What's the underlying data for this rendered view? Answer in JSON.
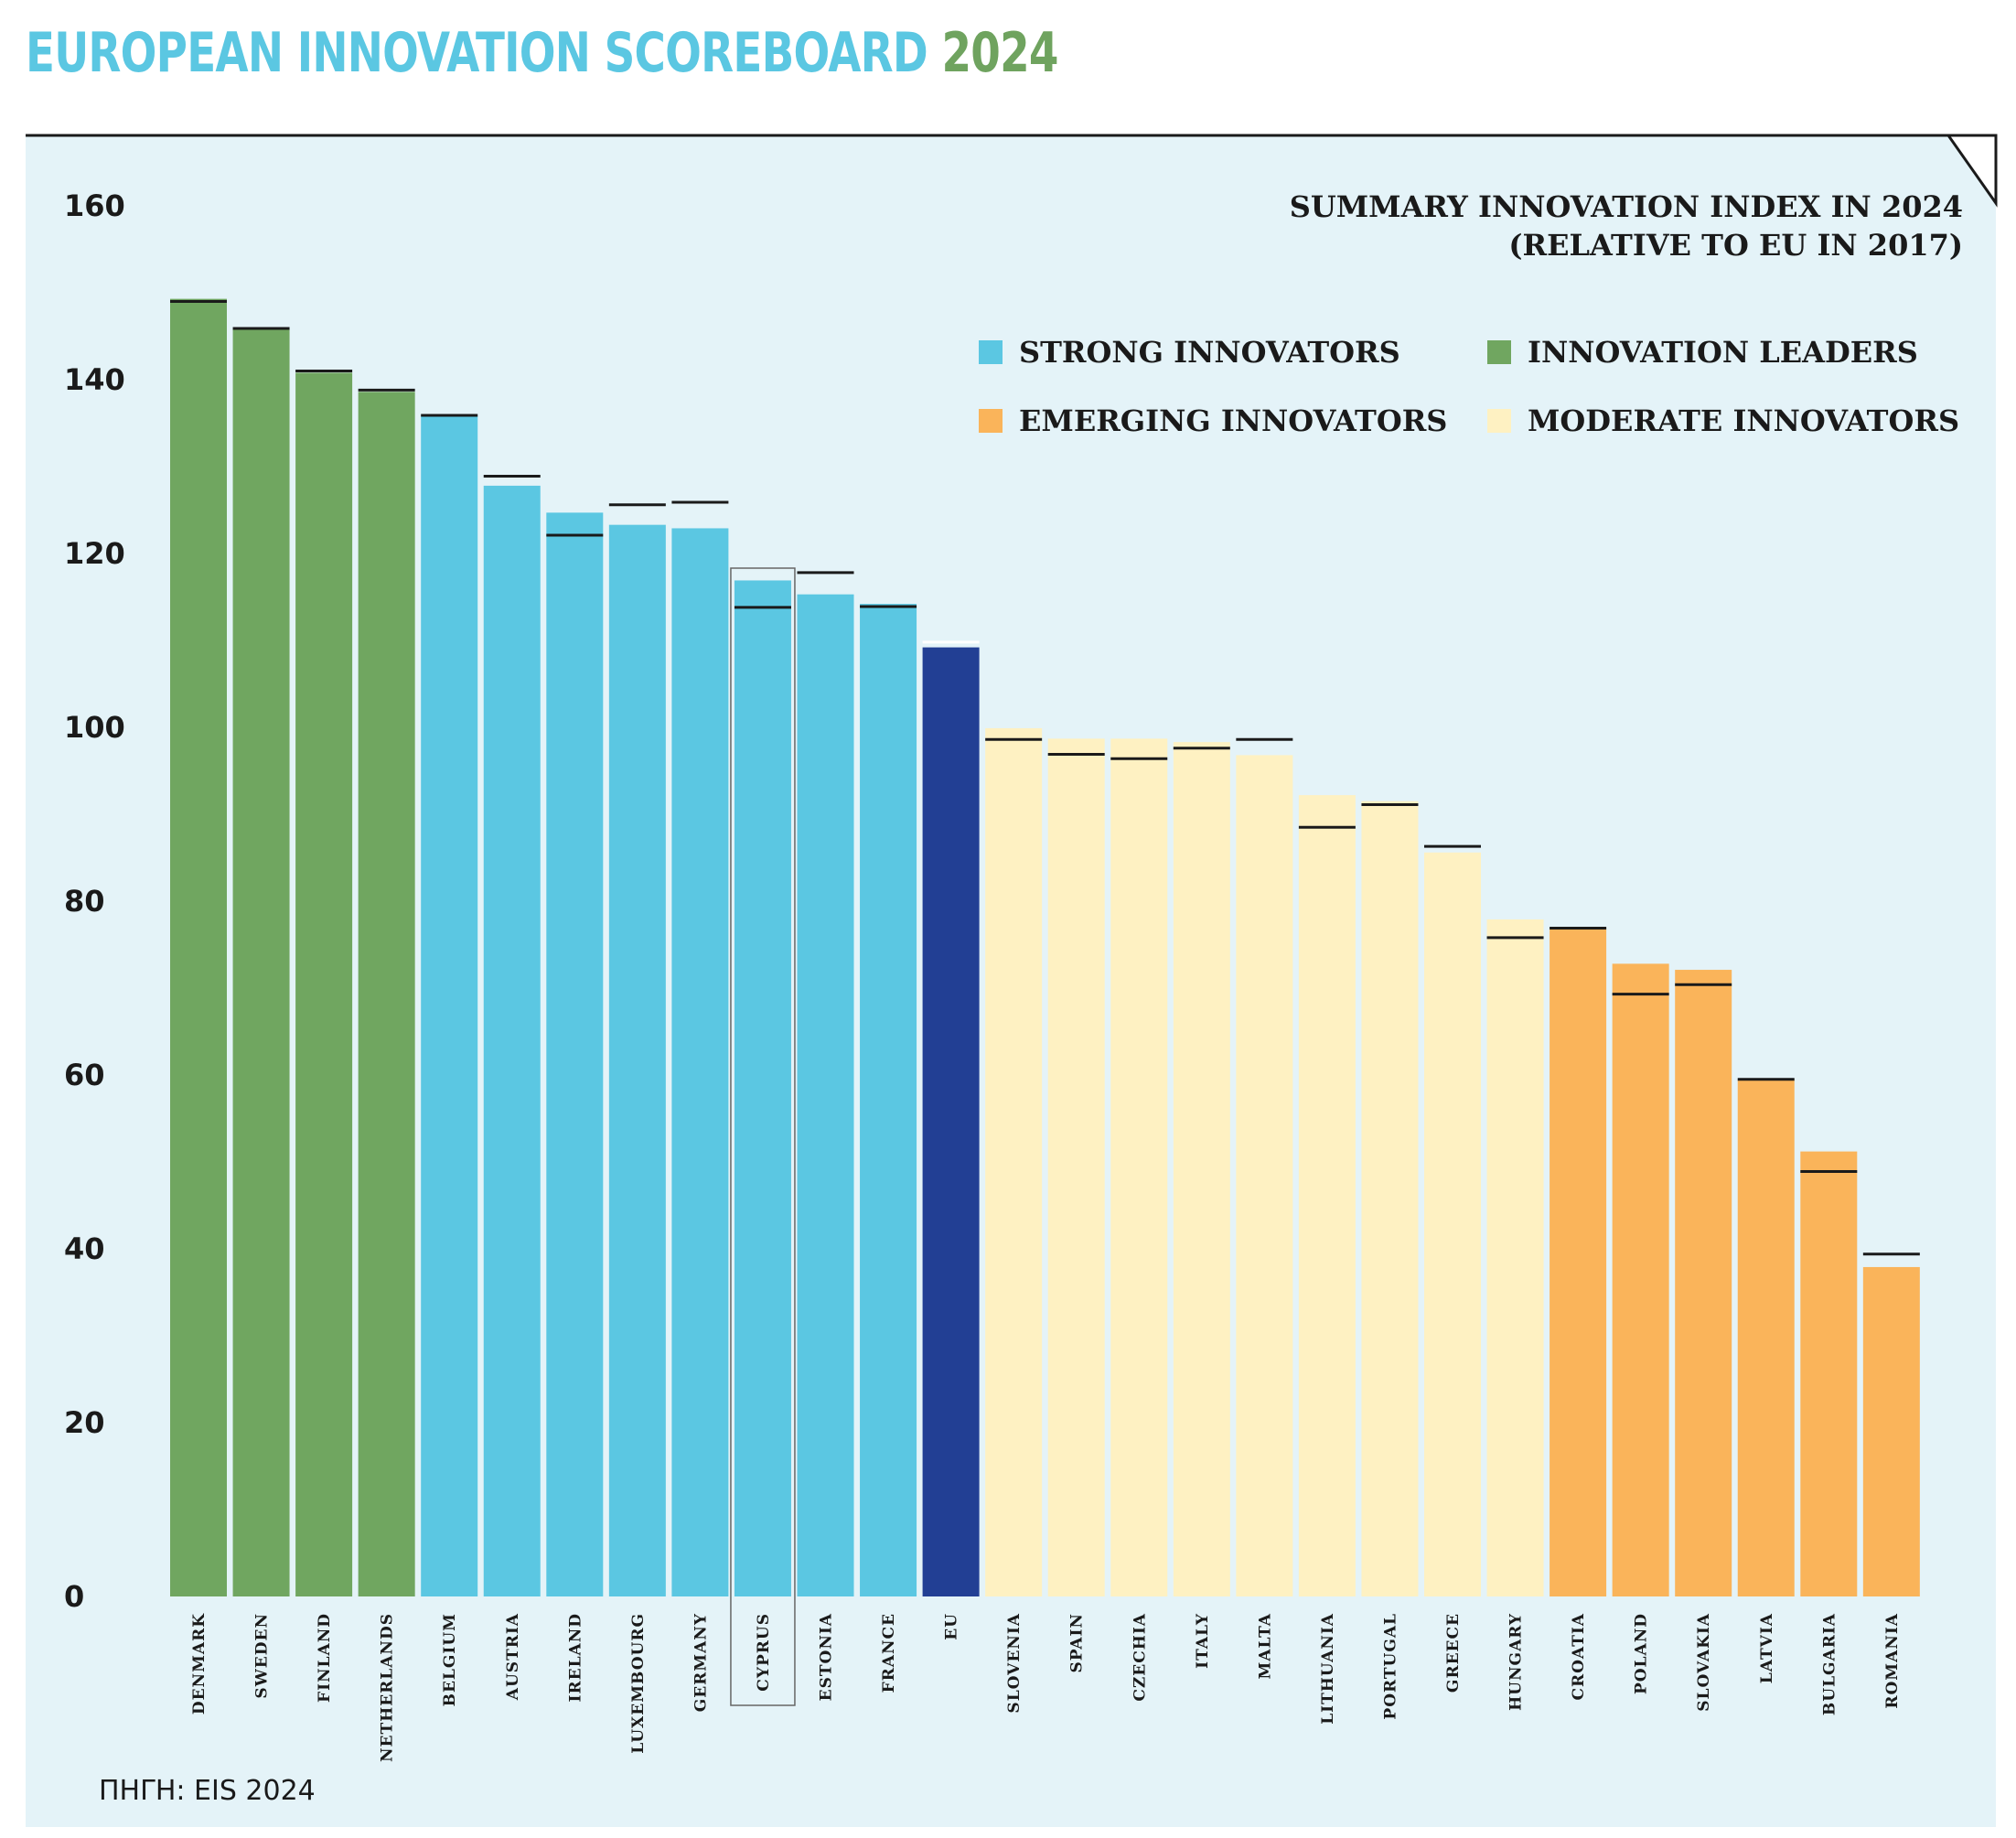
{
  "header": {
    "title_main": "EUROPEAN INNOVATION SCOREBOARD",
    "title_year": "2024"
  },
  "source": "ΠΗΓΗ: EIS 2024",
  "colors": {
    "panel_bg": "#e4f3f8",
    "innovation_leaders": "#70a660",
    "strong_innovators": "#5bc7e2",
    "moderate_innovators": "#fef1c2",
    "emerging_innovators": "#fab45a",
    "eu": "#223f94",
    "marker": "#1a1a1a"
  },
  "chart_data": {
    "type": "bar",
    "title": "SUMMARY INNOVATION INDEX IN 2024",
    "subtitle": "(RELATIVE TO EU IN 2017)",
    "ylim": [
      0,
      160
    ],
    "yticks": [
      0,
      20,
      40,
      60,
      80,
      100,
      120,
      140,
      160
    ],
    "grid": false,
    "legend_position": "top-right",
    "legend": [
      {
        "key": "strong_innovators",
        "label": "STRONG INNOVATORS"
      },
      {
        "key": "innovation_leaders",
        "label": "INNOVATION LEADERS"
      },
      {
        "key": "emerging_innovators",
        "label": "EMERGING INNOVATORS"
      },
      {
        "key": "moderate_innovators",
        "label": "MODERATE INNOVATORS"
      }
    ],
    "highlighted_category": "CYPRUS",
    "categories": [
      "DENMARK",
      "SWEDEN",
      "FINLAND",
      "NETHERLANDS",
      "BELGIUM",
      "AUSTRIA",
      "IRELAND",
      "LUXEMBOURG",
      "GERMANY",
      "CYPRUS",
      "ESTONIA",
      "FRANCE",
      "EU",
      "SLOVENIA",
      "SPAIN",
      "CZECHIA",
      "ITALY",
      "MALTA",
      "LITHUANIA",
      "PORTUGAL",
      "GREECE",
      "HUNGARY",
      "CROATIA",
      "POLAND",
      "SLOVAKIA",
      "LATVIA",
      "BULGARIA",
      "ROMANIA"
    ],
    "groups": [
      "innovation_leaders",
      "innovation_leaders",
      "innovation_leaders",
      "innovation_leaders",
      "strong_innovators",
      "strong_innovators",
      "strong_innovators",
      "strong_innovators",
      "strong_innovators",
      "strong_innovators",
      "strong_innovators",
      "strong_innovators",
      "eu",
      "moderate_innovators",
      "moderate_innovators",
      "moderate_innovators",
      "moderate_innovators",
      "moderate_innovators",
      "moderate_innovators",
      "moderate_innovators",
      "moderate_innovators",
      "moderate_innovators",
      "emerging_innovators",
      "emerging_innovators",
      "emerging_innovators",
      "emerging_innovators",
      "emerging_innovators",
      "emerging_innovators"
    ],
    "values": [
      149.3,
      145.8,
      140.8,
      138.6,
      135.9,
      127.8,
      124.7,
      123.3,
      122.9,
      116.9,
      115.3,
      114.2,
      109.2,
      99.9,
      98.7,
      98.7,
      98.3,
      96.8,
      92.2,
      91.5,
      85.6,
      77.9,
      76.9,
      72.8,
      72.1,
      59.5,
      51.2,
      37.9
    ],
    "markers": [
      149.0,
      145.9,
      141.0,
      138.8,
      135.9,
      128.9,
      122.1,
      125.6,
      125.9,
      113.8,
      117.8,
      113.9,
      109.8,
      98.6,
      96.9,
      96.4,
      97.6,
      98.6,
      88.5,
      91.1,
      86.3,
      75.8,
      76.9,
      69.3,
      70.4,
      59.5,
      48.9,
      39.4
    ]
  }
}
